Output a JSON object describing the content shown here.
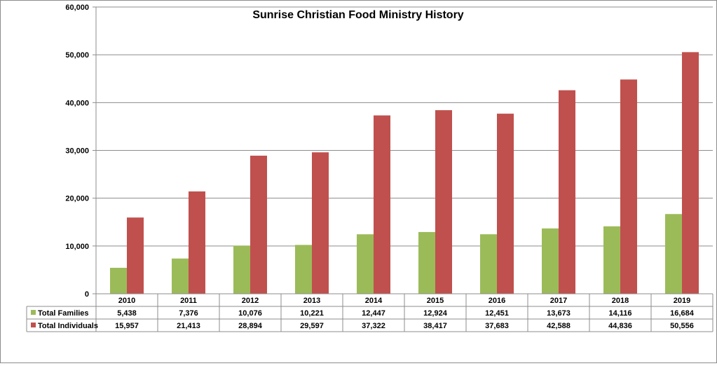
{
  "chart_data": {
    "type": "bar",
    "title": "Sunrise Christian Food Ministry History",
    "xlabel": "",
    "ylabel": "",
    "categories": [
      "2010",
      "2011",
      "2012",
      "2013",
      "2014",
      "2015",
      "2016",
      "2017",
      "2018",
      "2019"
    ],
    "ylim": [
      0,
      60000
    ],
    "yticks": [
      "0",
      "10,000",
      "20,000",
      "30,000",
      "40,000",
      "50,000",
      "60,000"
    ],
    "grid": true,
    "legend": "data-table",
    "series": [
      {
        "name": "Total Families",
        "color": "#9bbb59",
        "values": [
          5438,
          7376,
          10076,
          10221,
          12447,
          12924,
          12451,
          13673,
          14116,
          16684
        ],
        "labels": [
          "5,438",
          "7,376",
          "10,076",
          "10,221",
          "12,447",
          "12,924",
          "12,451",
          "13,673",
          "14,116",
          "16,684"
        ]
      },
      {
        "name": "Total Individuals",
        "color": "#c0504d",
        "values": [
          15957,
          21413,
          28894,
          29597,
          37322,
          38417,
          37683,
          42588,
          44836,
          50556
        ],
        "labels": [
          "15,957",
          "21,413",
          "28,894",
          "29,597",
          "37,322",
          "38,417",
          "37,683",
          "42,588",
          "44,836",
          "50,556"
        ]
      }
    ]
  }
}
